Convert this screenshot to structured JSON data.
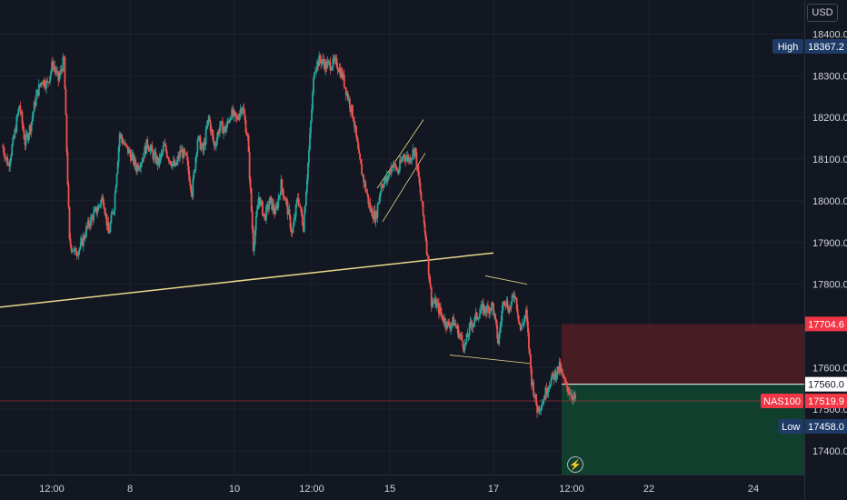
{
  "currency": "USD",
  "chart_data": {
    "type": "candlestick",
    "symbol": "NAS100",
    "y_ticks": [
      17400.0,
      17500.0,
      17600.0,
      17700.0,
      17800.0,
      17900.0,
      18000.0,
      18100.0,
      18200.0,
      18300.0,
      18400.0
    ],
    "x_ticks": [
      "12:00",
      "8",
      "10",
      "12:00",
      "15",
      "17",
      "12:00",
      "22",
      "24"
    ],
    "price_labels": {
      "high": {
        "label": "High",
        "value": "18367.2"
      },
      "low": {
        "label": "Low",
        "value": "17458.0"
      },
      "current": {
        "label": "NAS100",
        "value": "17519.9"
      },
      "stop_loss": {
        "value": "17704.6"
      },
      "entry": {
        "value": "17560.0"
      }
    },
    "position": {
      "side": "short",
      "entry": 17560.0,
      "stop": 17704.6,
      "target": 17375
    },
    "trendline": {
      "from": 17745,
      "to": 17875
    },
    "colors": {
      "up": "#26a69a",
      "down": "#ef5350",
      "background": "#131722",
      "trendline": "#e8d98a",
      "stop_zone": "#4a1d24",
      "target_zone": "#10412f",
      "label_blue": "#1e3a66",
      "label_red": "#f23645"
    },
    "price_path": [
      18130,
      18085,
      18150,
      18230,
      18140,
      18180,
      18250,
      18290,
      18280,
      18330,
      18290,
      18340,
      17900,
      17875,
      17890,
      17930,
      17960,
      17980,
      18010,
      17920,
      17990,
      18160,
      18130,
      18110,
      18080,
      18100,
      18140,
      18110,
      18090,
      18130,
      18100,
      18080,
      18120,
      18100,
      18020,
      18150,
      18120,
      18200,
      18130,
      18180,
      18170,
      18210,
      18195,
      18230,
      18150,
      17890,
      18010,
      17960,
      18000,
      17970,
      18040,
      17990,
      17920,
      18010,
      17940,
      18120,
      18320,
      18340,
      18325,
      18328,
      18330,
      18300,
      18250,
      18200,
      18100,
      18040,
      17980,
      17960,
      18040,
      18050,
      18090,
      18070,
      18110,
      18100,
      18125,
      18020,
      17910,
      17760,
      17750,
      17720,
      17700,
      17710,
      17680,
      17650,
      17700,
      17720,
      17740,
      17740,
      17750,
      17660,
      17770,
      17740,
      17780,
      17690,
      17730,
      17570,
      17500,
      17520,
      17560,
      17580,
      17600,
      17560,
      17540,
      17520
    ]
  }
}
